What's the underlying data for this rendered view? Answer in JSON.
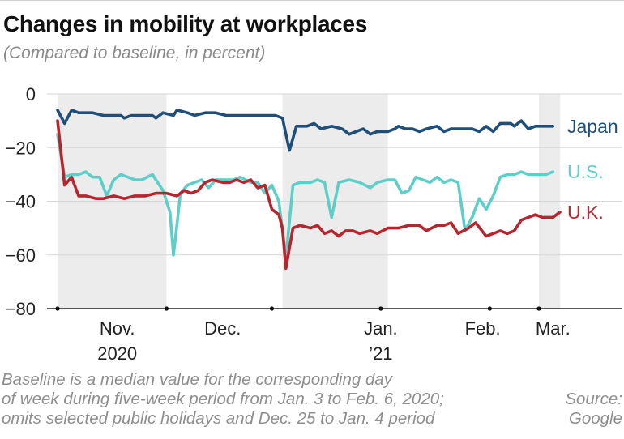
{
  "title": "Changes in mobility at workplaces",
  "subtitle": "(Compared to baseline, in percent)",
  "note_lines": [
    "Baseline is a median value for the corresponding day",
    "of week during five-week period from Jan. 3 to Feb. 6, 2020;",
    "omits selected public holidays and Dec. 25 to Jan. 4 period"
  ],
  "source_lines": [
    "Source:",
    "Google"
  ],
  "chart_data": {
    "type": "line",
    "title": "Changes in mobility at workplaces",
    "subtitle": "(Compared to baseline, in percent)",
    "xlabel": "",
    "ylabel": "",
    "x_start": "2020-10-15",
    "x_end": "2021-03-07",
    "ylim": [
      -80,
      0
    ],
    "yticks": [
      0,
      -20,
      -40,
      -60,
      -80
    ],
    "ytick_labels": [
      "0",
      "−20",
      "−40",
      "−60",
      "−80"
    ],
    "xtick_dates": [
      "2020-10-15",
      "2020-11-15",
      "2020-12-15",
      "2021-01-15",
      "2021-02-15",
      "2021-03-01"
    ],
    "month_labels": [
      {
        "date": "2020-11-01",
        "lines": [
          "Nov.",
          "2020"
        ]
      },
      {
        "date": "2020-12-01",
        "lines": [
          "Dec."
        ]
      },
      {
        "date": "2021-01-15",
        "lines": [
          "Jan.",
          "’21"
        ]
      },
      {
        "date": "2021-02-13",
        "lines": [
          "Feb."
        ]
      },
      {
        "date": "2021-03-05",
        "lines": [
          "Mar."
        ]
      }
    ],
    "shaded_ranges": [
      [
        "2020-10-15",
        "2020-11-15"
      ],
      [
        "2020-12-18",
        "2021-01-17"
      ],
      [
        "2021-03-01",
        "2021-03-07"
      ]
    ],
    "grid": "y",
    "legend": "direct labels at right end of each line",
    "colors": {
      "Japan": "#1f4e79",
      "U.S.": "#5ecfc8",
      "U.K.": "#b5262e",
      "shade": "#ececec",
      "grid": "#d6d6d6"
    },
    "series": [
      {
        "name": "Japan",
        "points": [
          [
            "2020-10-15",
            -6
          ],
          [
            "2020-10-17",
            -11
          ],
          [
            "2020-10-19",
            -6
          ],
          [
            "2020-10-21",
            -7
          ],
          [
            "2020-10-25",
            -7
          ],
          [
            "2020-10-28",
            -8
          ],
          [
            "2020-11-02",
            -8
          ],
          [
            "2020-11-03",
            -9
          ],
          [
            "2020-11-05",
            -8
          ],
          [
            "2020-11-09",
            -8
          ],
          [
            "2020-11-11",
            -8
          ],
          [
            "2020-11-12",
            -9
          ],
          [
            "2020-11-14",
            -7
          ],
          [
            "2020-11-17",
            -8
          ],
          [
            "2020-11-18",
            -6
          ],
          [
            "2020-11-21",
            -7
          ],
          [
            "2020-11-23",
            -8
          ],
          [
            "2020-11-26",
            -7
          ],
          [
            "2020-11-29",
            -7
          ],
          [
            "2020-12-02",
            -8
          ],
          [
            "2020-12-05",
            -8
          ],
          [
            "2020-12-09",
            -8
          ],
          [
            "2020-12-13",
            -8
          ],
          [
            "2020-12-16",
            -8
          ],
          [
            "2020-12-18",
            -9
          ],
          [
            "2020-12-20",
            -21
          ],
          [
            "2020-12-22",
            -12
          ],
          [
            "2020-12-25",
            -12
          ],
          [
            "2020-12-27",
            -11
          ],
          [
            "2020-12-29",
            -13
          ],
          [
            "2021-01-01",
            -12
          ],
          [
            "2021-01-04",
            -13
          ],
          [
            "2021-01-06",
            -15
          ],
          [
            "2021-01-08",
            -14
          ],
          [
            "2021-01-10",
            -13
          ],
          [
            "2021-01-12",
            -15
          ],
          [
            "2021-01-14",
            -14
          ],
          [
            "2021-01-17",
            -14
          ],
          [
            "2021-01-19",
            -13
          ],
          [
            "2021-01-20",
            -12
          ],
          [
            "2021-01-22",
            -13
          ],
          [
            "2021-01-24",
            -13
          ],
          [
            "2021-01-26",
            -14
          ],
          [
            "2021-01-28",
            -13
          ],
          [
            "2021-01-31",
            -12
          ],
          [
            "2021-02-02",
            -14
          ],
          [
            "2021-02-04",
            -13
          ],
          [
            "2021-02-07",
            -13
          ],
          [
            "2021-02-10",
            -13
          ],
          [
            "2021-02-12",
            -14
          ],
          [
            "2021-02-14",
            -12
          ],
          [
            "2021-02-16",
            -14
          ],
          [
            "2021-02-18",
            -11
          ],
          [
            "2021-02-21",
            -11
          ],
          [
            "2021-02-22",
            -12
          ],
          [
            "2021-02-24",
            -10
          ],
          [
            "2021-02-26",
            -13
          ],
          [
            "2021-02-28",
            -12
          ],
          [
            "2021-03-03",
            -12
          ],
          [
            "2021-03-05",
            -12
          ]
        ]
      },
      {
        "name": "U.S.",
        "points": [
          [
            "2020-10-15",
            -15
          ],
          [
            "2020-10-17",
            -31
          ],
          [
            "2020-10-19",
            -30
          ],
          [
            "2020-10-21",
            -30
          ],
          [
            "2020-10-23",
            -29
          ],
          [
            "2020-10-25",
            -31
          ],
          [
            "2020-10-27",
            -31
          ],
          [
            "2020-10-29",
            -38
          ],
          [
            "2020-10-31",
            -32
          ],
          [
            "2020-11-02",
            -30
          ],
          [
            "2020-11-04",
            -31
          ],
          [
            "2020-11-06",
            -32
          ],
          [
            "2020-11-08",
            -32
          ],
          [
            "2020-11-11",
            -30
          ],
          [
            "2020-11-14",
            -36
          ],
          [
            "2020-11-16",
            -44
          ],
          [
            "2020-11-17",
            -60
          ],
          [
            "2020-11-19",
            -37
          ],
          [
            "2020-11-21",
            -34
          ],
          [
            "2020-11-23",
            -33
          ],
          [
            "2020-11-25",
            -32
          ],
          [
            "2020-11-27",
            -35
          ],
          [
            "2020-11-29",
            -32
          ],
          [
            "2020-12-02",
            -32
          ],
          [
            "2020-12-04",
            -32
          ],
          [
            "2020-12-06",
            -31
          ],
          [
            "2020-12-09",
            -33
          ],
          [
            "2020-12-11",
            -33
          ],
          [
            "2020-12-13",
            -37
          ],
          [
            "2020-12-15",
            -34
          ],
          [
            "2020-12-17",
            -40
          ],
          [
            "2020-12-19",
            -61
          ],
          [
            "2020-12-21",
            -34
          ],
          [
            "2020-12-23",
            -33
          ],
          [
            "2020-12-26",
            -33
          ],
          [
            "2020-12-28",
            -32
          ],
          [
            "2020-12-30",
            -33
          ],
          [
            "2021-01-01",
            -46
          ],
          [
            "2021-01-03",
            -33
          ],
          [
            "2021-01-06",
            -32
          ],
          [
            "2021-01-09",
            -33
          ],
          [
            "2021-01-12",
            -35
          ],
          [
            "2021-01-14",
            -33
          ],
          [
            "2021-01-17",
            -32
          ],
          [
            "2021-01-19",
            -32
          ],
          [
            "2021-01-21",
            -37
          ],
          [
            "2021-01-23",
            -36
          ],
          [
            "2021-01-25",
            -31
          ],
          [
            "2021-01-27",
            -32
          ],
          [
            "2021-01-29",
            -33
          ],
          [
            "2021-01-31",
            -31
          ],
          [
            "2021-02-02",
            -33
          ],
          [
            "2021-02-04",
            -32
          ],
          [
            "2021-02-06",
            -33
          ],
          [
            "2021-02-08",
            -51
          ],
          [
            "2021-02-10",
            -46
          ],
          [
            "2021-02-12",
            -39
          ],
          [
            "2021-02-14",
            -43
          ],
          [
            "2021-02-16",
            -38
          ],
          [
            "2021-02-18",
            -31
          ],
          [
            "2021-02-20",
            -30
          ],
          [
            "2021-02-22",
            -30
          ],
          [
            "2021-02-24",
            -29
          ],
          [
            "2021-02-26",
            -30
          ],
          [
            "2021-03-01",
            -30
          ],
          [
            "2021-03-03",
            -30
          ],
          [
            "2021-03-05",
            -29
          ]
        ]
      },
      {
        "name": "U.K.",
        "points": [
          [
            "2020-10-15",
            -10
          ],
          [
            "2020-10-17",
            -34
          ],
          [
            "2020-10-19",
            -31
          ],
          [
            "2020-10-21",
            -38
          ],
          [
            "2020-10-23",
            -38
          ],
          [
            "2020-10-26",
            -39
          ],
          [
            "2020-10-28",
            -39
          ],
          [
            "2020-10-31",
            -38
          ],
          [
            "2020-11-03",
            -39
          ],
          [
            "2020-11-06",
            -38
          ],
          [
            "2020-11-09",
            -38
          ],
          [
            "2020-11-12",
            -37
          ],
          [
            "2020-11-15",
            -37
          ],
          [
            "2020-11-18",
            -38
          ],
          [
            "2020-11-20",
            -36
          ],
          [
            "2020-11-22",
            -37
          ],
          [
            "2020-11-24",
            -36
          ],
          [
            "2020-11-26",
            -33
          ],
          [
            "2020-11-28",
            -32
          ],
          [
            "2020-12-01",
            -33
          ],
          [
            "2020-12-03",
            -33
          ],
          [
            "2020-12-05",
            -32
          ],
          [
            "2020-12-07",
            -33
          ],
          [
            "2020-12-09",
            -32
          ],
          [
            "2020-12-11",
            -35
          ],
          [
            "2020-12-13",
            -34
          ],
          [
            "2020-12-15",
            -43
          ],
          [
            "2020-12-17",
            -45
          ],
          [
            "2020-12-18",
            -50
          ],
          [
            "2020-12-19",
            -65
          ],
          [
            "2020-12-21",
            -50
          ],
          [
            "2020-12-23",
            -49
          ],
          [
            "2020-12-26",
            -50
          ],
          [
            "2020-12-28",
            -49
          ],
          [
            "2020-12-30",
            -52
          ],
          [
            "2021-01-01",
            -51
          ],
          [
            "2021-01-03",
            -53
          ],
          [
            "2021-01-05",
            -51
          ],
          [
            "2021-01-07",
            -51
          ],
          [
            "2021-01-09",
            -52
          ],
          [
            "2021-01-12",
            -51
          ],
          [
            "2021-01-14",
            -52
          ],
          [
            "2021-01-17",
            -50
          ],
          [
            "2021-01-20",
            -50
          ],
          [
            "2021-01-23",
            -49
          ],
          [
            "2021-01-26",
            -49
          ],
          [
            "2021-01-28",
            -51
          ],
          [
            "2021-01-31",
            -49
          ],
          [
            "2021-02-02",
            -49
          ],
          [
            "2021-02-04",
            -48
          ],
          [
            "2021-02-06",
            -52
          ],
          [
            "2021-02-09",
            -50
          ],
          [
            "2021-02-11",
            -48
          ],
          [
            "2021-02-14",
            -53
          ],
          [
            "2021-02-16",
            -52
          ],
          [
            "2021-02-18",
            -51
          ],
          [
            "2021-02-20",
            -52
          ],
          [
            "2021-02-22",
            -51
          ],
          [
            "2021-02-24",
            -47
          ],
          [
            "2021-02-26",
            -46
          ],
          [
            "2021-02-28",
            -45
          ],
          [
            "2021-03-02",
            -46
          ],
          [
            "2021-03-05",
            -46
          ],
          [
            "2021-03-07",
            -44
          ]
        ]
      }
    ]
  }
}
